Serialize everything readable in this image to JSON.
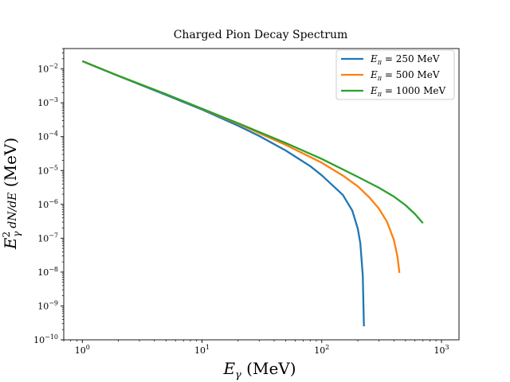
{
  "chart_data": {
    "type": "line",
    "title": "Charged Pion Decay Spectrum",
    "xlabel": "E_γ (MeV)",
    "ylabel": "E_γ² dN/dE (MeV)",
    "xscale": "log",
    "yscale": "log",
    "xlim": [
      0.7,
      1400
    ],
    "ylim": [
      1e-10,
      0.04
    ],
    "grid": false,
    "legend_position": "top-right",
    "x_ticks": [
      {
        "value": 1,
        "base": "10",
        "exp": "0"
      },
      {
        "value": 10,
        "base": "10",
        "exp": "1"
      },
      {
        "value": 100,
        "base": "10",
        "exp": "2"
      },
      {
        "value": 1000,
        "base": "10",
        "exp": "3"
      }
    ],
    "y_ticks": [
      {
        "value": 1e-10,
        "base": "10",
        "exp": "−10"
      },
      {
        "value": 1e-09,
        "base": "10",
        "exp": "−9"
      },
      {
        "value": 1e-08,
        "base": "10",
        "exp": "−8"
      },
      {
        "value": 1e-07,
        "base": "10",
        "exp": "−7"
      },
      {
        "value": 1e-06,
        "base": "10",
        "exp": "−6"
      },
      {
        "value": 1e-05,
        "base": "10",
        "exp": "−5"
      },
      {
        "value": 0.0001,
        "base": "10",
        "exp": "−4"
      },
      {
        "value": 0.001,
        "base": "10",
        "exp": "−3"
      },
      {
        "value": 0.01,
        "base": "10",
        "exp": "−2"
      }
    ],
    "series": [
      {
        "name": "E_π = 250 MeV",
        "color": "#1f77b4",
        "x": [
          1,
          2,
          5,
          10,
          20,
          30,
          50,
          80,
          100,
          150,
          180,
          200,
          210,
          220,
          225
        ],
        "y": [
          0.017,
          0.0062,
          0.0017,
          0.00063,
          0.00021,
          0.000105,
          3.9e-05,
          1.35e-05,
          7.2e-06,
          1.9e-06,
          6.5e-07,
          1.9e-07,
          7e-08,
          8e-09,
          2.5e-10
        ]
      },
      {
        "name": "E_π = 500 MeV",
        "color": "#ff7f0e",
        "x": [
          1,
          2,
          5,
          10,
          20,
          50,
          100,
          150,
          200,
          250,
          300,
          350,
          400,
          430,
          445
        ],
        "y": [
          0.017,
          0.0063,
          0.0018,
          0.00066,
          0.00024,
          5.7e-05,
          1.7e-05,
          7.1e-06,
          3.4e-06,
          1.6e-06,
          7.5e-07,
          3.1e-07,
          9e-08,
          2.7e-08,
          9.5e-09
        ]
      },
      {
        "name": "E_π = 1000 MeV",
        "color": "#2ca02c",
        "x": [
          1,
          2,
          5,
          10,
          20,
          50,
          100,
          200,
          300,
          400,
          500,
          600,
          700
        ],
        "y": [
          0.017,
          0.0063,
          0.0018,
          0.00067,
          0.00025,
          6.5e-05,
          2.2e-05,
          6.5e-06,
          3.1e-06,
          1.7e-06,
          9.5e-07,
          5.2e-07,
          2.8e-07
        ]
      }
    ],
    "legend": [
      {
        "main": "E",
        "sub": "π",
        "rest": " = 250 MeV"
      },
      {
        "main": "E",
        "sub": "π",
        "rest": " = 500 MeV"
      },
      {
        "main": "E",
        "sub": "π",
        "rest": " = 1000 MeV"
      }
    ]
  }
}
